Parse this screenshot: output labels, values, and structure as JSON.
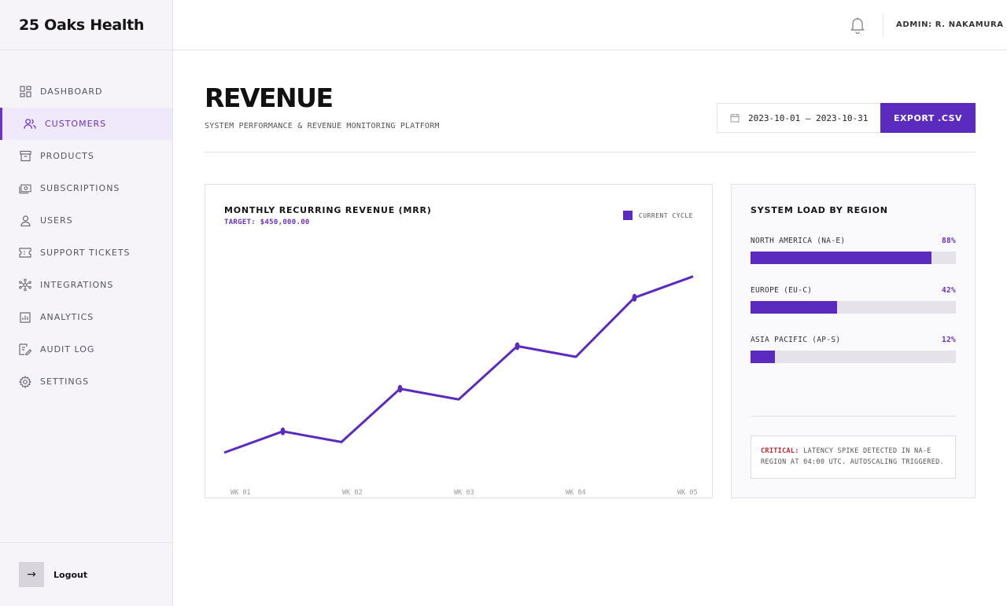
{
  "brand": {
    "name": "25 Oaks Health"
  },
  "sidebar": {
    "items": [
      {
        "label": "DASHBOARD",
        "icon": "dashboard-icon",
        "active": false
      },
      {
        "label": "CUSTOMERS",
        "icon": "customers-icon",
        "active": true
      },
      {
        "label": "PRODUCTS",
        "icon": "archive-box-icon",
        "active": false
      },
      {
        "label": "SUBSCRIPTIONS",
        "icon": "banknote-icon",
        "active": false
      },
      {
        "label": "USERS",
        "icon": "user-icon",
        "active": false
      },
      {
        "label": "SUPPORT TICKETS",
        "icon": "ticket-icon",
        "active": false
      },
      {
        "label": "INTEGRATIONS",
        "icon": "network-icon",
        "active": false
      },
      {
        "label": "ANALYTICS",
        "icon": "bar-chart-icon",
        "active": false
      },
      {
        "label": "AUDIT LOG",
        "icon": "audit-log-icon",
        "active": false
      },
      {
        "label": "SETTINGS",
        "icon": "gear-icon",
        "active": false
      }
    ],
    "logout_label": "Logout"
  },
  "header": {
    "admin": "ADMIN: R. NAKAMURA"
  },
  "page": {
    "title": "REVENUE",
    "subtitle": "SYSTEM PERFORMANCE & REVENUE MONITORING PLATFORM",
    "date_range": "2023-10-01 — 2023-10-31",
    "export_label": "EXPORT .CSV"
  },
  "chart": {
    "title": "MONTHLY RECURRING REVENUE (MRR)",
    "target": "TARGET: $450,000.00",
    "legend": "CURRENT CYCLE"
  },
  "chart_data": {
    "type": "line",
    "title": "MONTHLY RECURRING REVENUE (MRR)",
    "x_tick_labels": [
      "WK 01",
      "WK 02",
      "WK 03",
      "WK 04",
      "WK 05"
    ],
    "series": [
      {
        "name": "CURRENT CYCLE",
        "values": [
          0.1,
          0.19,
          0.145,
          0.37,
          0.325,
          0.55,
          0.505,
          0.755,
          0.845
        ],
        "markers": [
          1,
          3,
          5,
          7
        ]
      }
    ],
    "ylim": [
      0,
      1
    ],
    "grid": false,
    "legend": "top-right",
    "color": "#5b2bbf"
  },
  "regions": {
    "title": "SYSTEM LOAD BY REGION",
    "items": [
      {
        "name": "NORTH AMERICA (NA-E)",
        "pct_label": "88%",
        "value": 0.88
      },
      {
        "name": "EUROPE (EU-C)",
        "pct_label": "42%",
        "value": 0.42
      },
      {
        "name": "ASIA PACIFIC (AP-S)",
        "pct_label": "12%",
        "value": 0.12
      }
    ],
    "alert": {
      "level": "CRITICAL:",
      "message": "LATENCY SPIKE DETECTED IN NA-E REGION AT 04:00 UTC. AUTOSCALING TRIGGERED."
    }
  }
}
